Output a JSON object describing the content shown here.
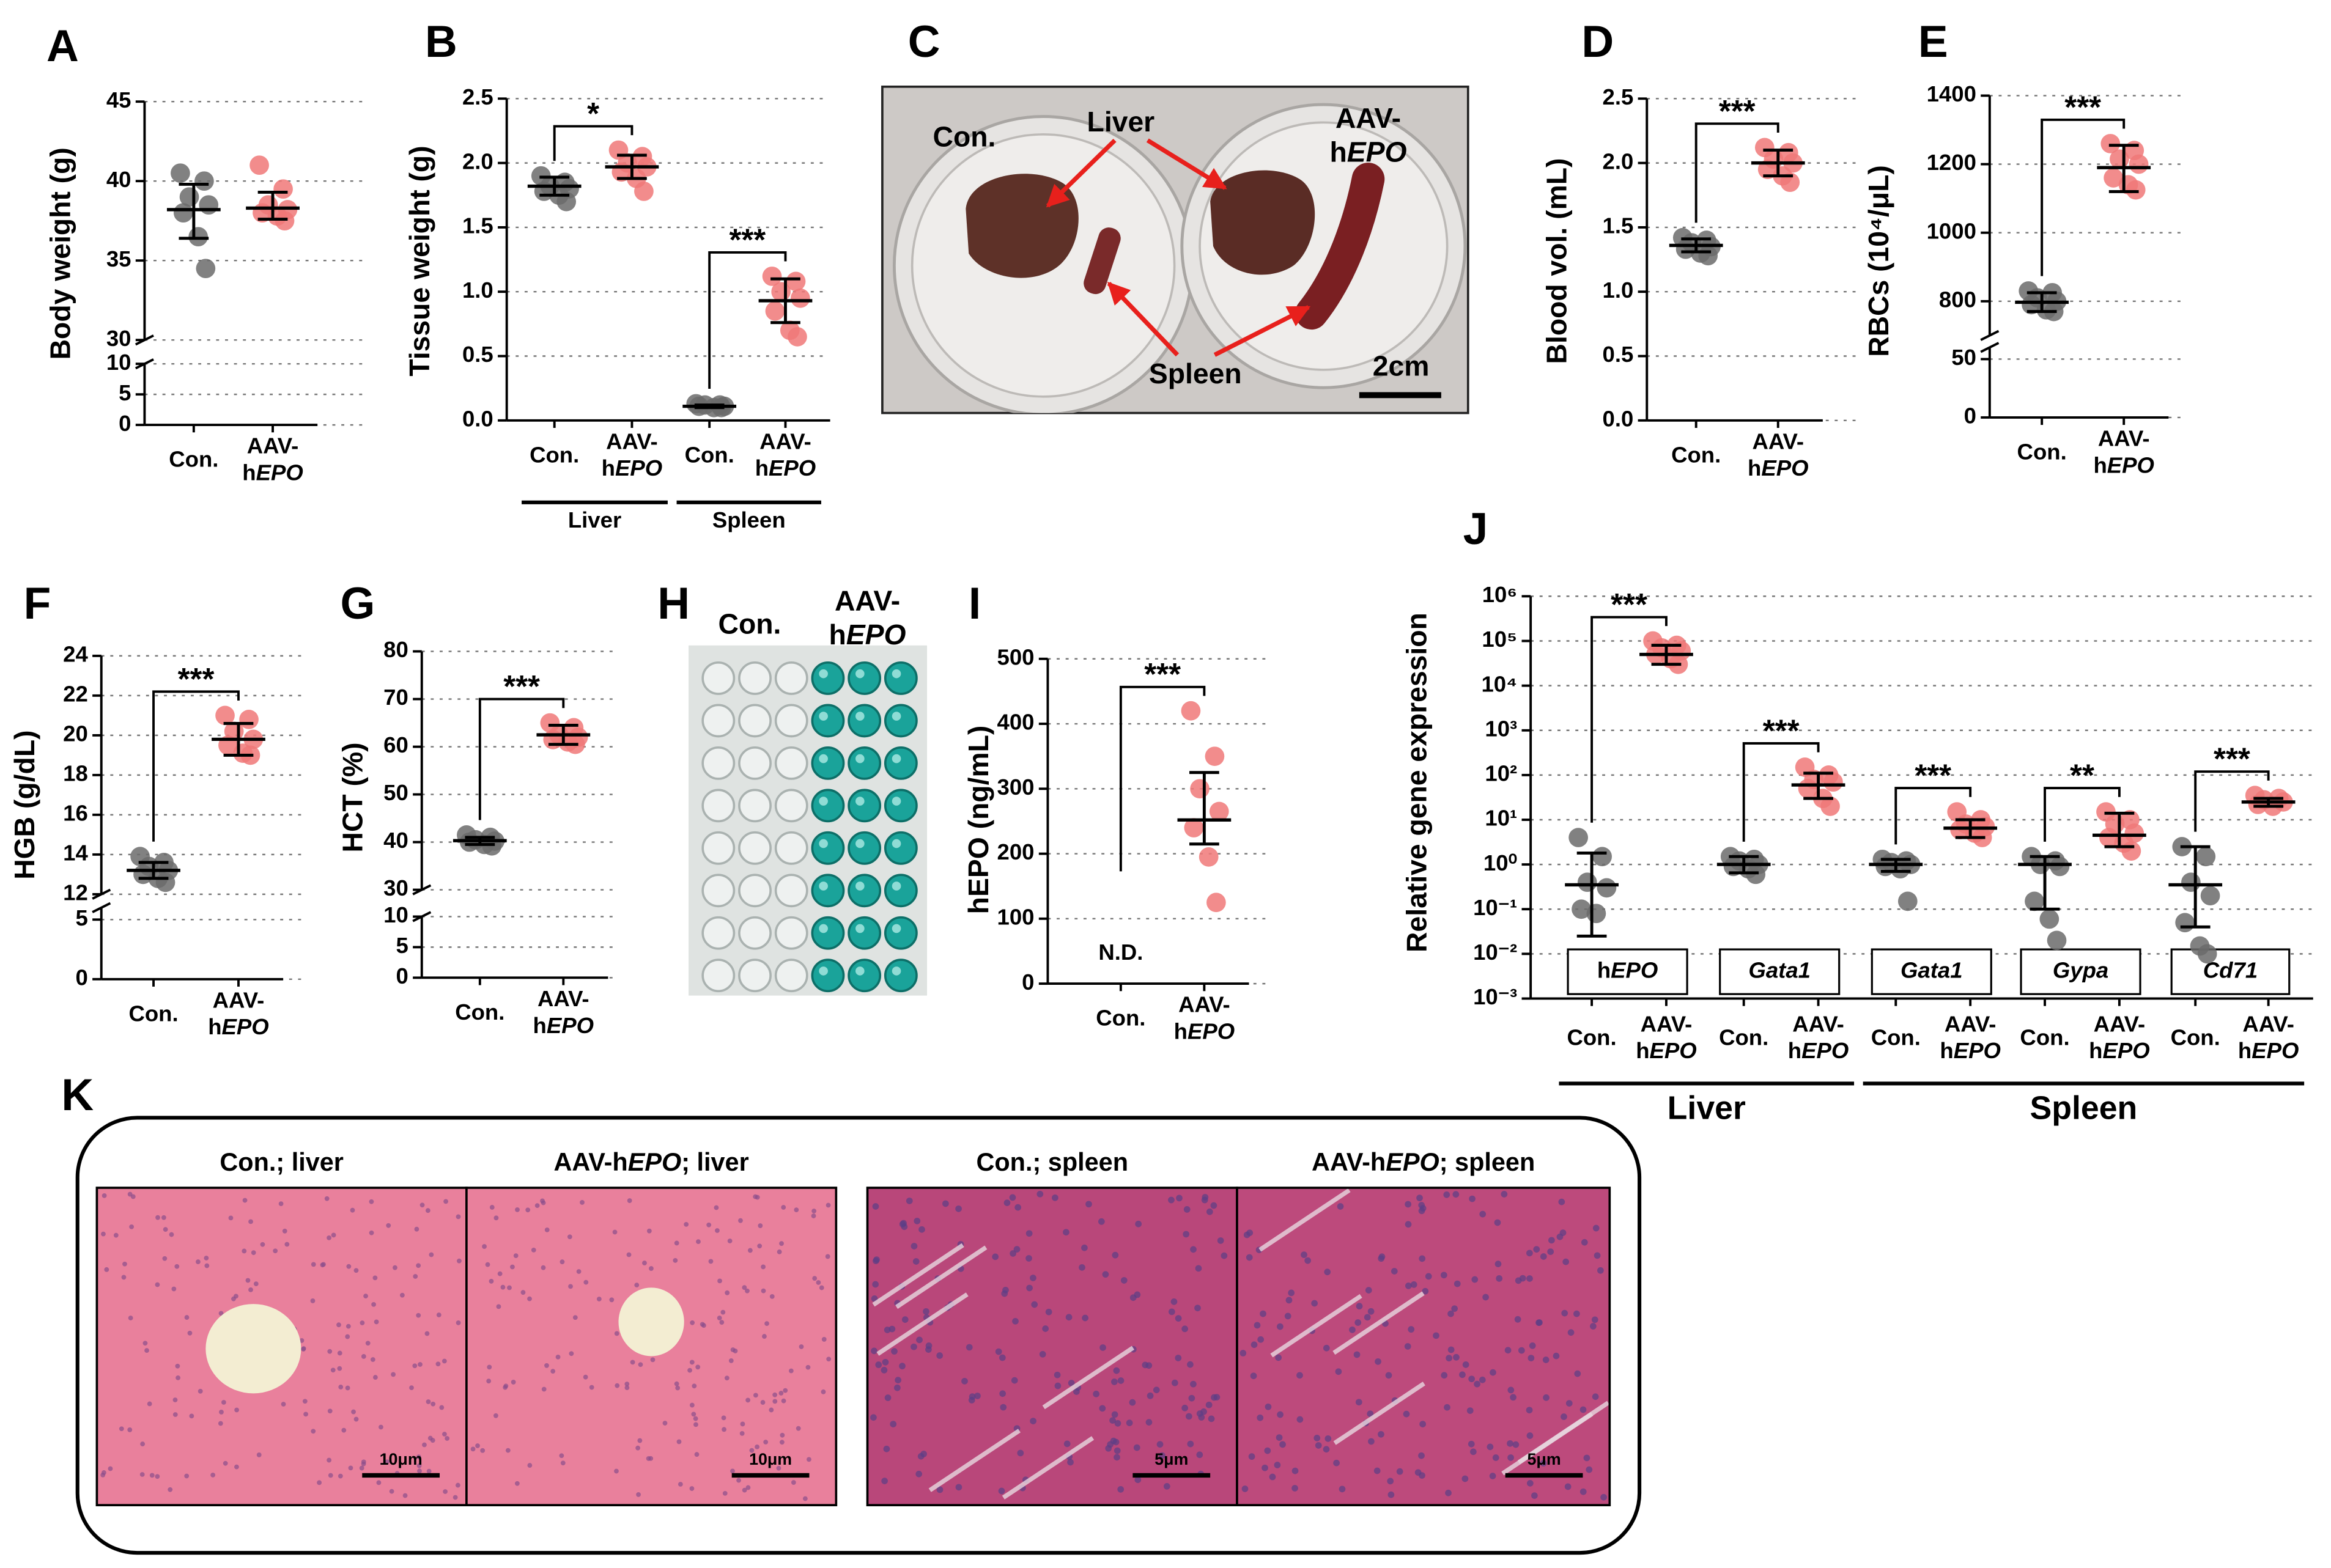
{
  "chart_data": [
    {
      "panel": "A",
      "type": "dot",
      "ylabel": "Body weight (g)",
      "ylim": [
        30,
        45
      ],
      "yticks": [
        30,
        35,
        40,
        45
      ],
      "ylim_low": [
        0,
        10
      ],
      "yticks_low": [
        0,
        5,
        10
      ],
      "grid": true,
      "sections": [
        {
          "pairs": [
            {
              "groups": [
                {
                  "category": "Con.",
                  "color": "#6b6b6b",
                  "values": [
                    40.5,
                    40,
                    39,
                    38.5,
                    38,
                    36.5,
                    34.5
                  ],
                  "center": 38.2,
                  "low": 36.4,
                  "high": 39.8
                },
                {
                  "category": "AAV-hEPO",
                  "color": "#f07878",
                  "values": [
                    41,
                    39.5,
                    38.5,
                    38.2,
                    38,
                    37.8,
                    37.5
                  ],
                  "center": 38.3,
                  "low": 37.6,
                  "high": 39.3
                }
              ]
            }
          ]
        }
      ]
    },
    {
      "panel": "B",
      "type": "dot",
      "ylabel": "Tissue weight (g)",
      "ylim": [
        0,
        2.5
      ],
      "yticks": [
        {
          "value": 0,
          "label": "0.0"
        },
        {
          "value": 0.5,
          "label": "0.5"
        },
        {
          "value": 1,
          "label": "1.0"
        },
        {
          "value": 1.5,
          "label": "1.5"
        },
        {
          "value": 2,
          "label": "2.0"
        },
        {
          "value": 2.5,
          "label": "2.5"
        }
      ],
      "grid": true,
      "sections": [
        {
          "label": "Liver",
          "pairs": [
            {
              "significance": "*",
              "groups": [
                {
                  "category": "Con.",
                  "color": "#6b6b6b",
                  "values": [
                    1.9,
                    1.85,
                    1.82,
                    1.8,
                    1.78,
                    1.75,
                    1.7
                  ],
                  "center": 1.82,
                  "low": 1.75,
                  "high": 1.89
                },
                {
                  "category": "AAV-hEPO",
                  "color": "#f07878",
                  "values": [
                    2.1,
                    2.05,
                    2,
                    1.97,
                    1.93,
                    1.88,
                    1.78
                  ],
                  "center": 1.97,
                  "low": 1.88,
                  "high": 2.06
                }
              ]
            }
          ]
        },
        {
          "label": "Spleen",
          "pairs": [
            {
              "significance": "***",
              "groups": [
                {
                  "category": "Con.",
                  "color": "#6b6b6b",
                  "values": [
                    0.13,
                    0.12,
                    0.12,
                    0.11,
                    0.11,
                    0.1,
                    0.1
                  ],
                  "center": 0.11,
                  "low": 0.1,
                  "high": 0.12
                },
                {
                  "category": "AAV-hEPO",
                  "color": "#f07878",
                  "values": [
                    1.12,
                    1.08,
                    1,
                    0.95,
                    0.85,
                    0.7,
                    0.65
                  ],
                  "center": 0.93,
                  "low": 0.76,
                  "high": 1.1
                }
              ]
            }
          ]
        }
      ]
    },
    {
      "panel": "D",
      "type": "dot",
      "ylabel": "Blood vol. (mL)",
      "ylim": [
        0,
        2.5
      ],
      "yticks": [
        {
          "value": 0,
          "label": "0.0"
        },
        {
          "value": 0.5,
          "label": "0.5"
        },
        {
          "value": 1,
          "label": "1.0"
        },
        {
          "value": 1.5,
          "label": "1.5"
        },
        {
          "value": 2,
          "label": "2.0"
        },
        {
          "value": 2.5,
          "label": "2.5"
        }
      ],
      "grid": true,
      "sections": [
        {
          "pairs": [
            {
              "significance": "***",
              "groups": [
                {
                  "category": "Con.",
                  "color": "#6b6b6b",
                  "values": [
                    1.42,
                    1.4,
                    1.38,
                    1.35,
                    1.33,
                    1.3,
                    1.28
                  ],
                  "center": 1.36,
                  "low": 1.31,
                  "high": 1.41
                },
                {
                  "category": "AAV-hEPO",
                  "color": "#f07878",
                  "values": [
                    2.12,
                    2.08,
                    2.03,
                    2,
                    1.95,
                    1.9,
                    1.85
                  ],
                  "center": 2,
                  "low": 1.9,
                  "high": 2.1
                }
              ]
            }
          ]
        }
      ]
    },
    {
      "panel": "E",
      "type": "dot",
      "ylabel": "RBCs (10⁴/μL)",
      "ylim": [
        700,
        1400
      ],
      "yticks": [
        800,
        1000,
        1200,
        1400
      ],
      "ylim_low": [
        0,
        60
      ],
      "yticks_low": [
        0,
        50
      ],
      "grid": true,
      "sections": [
        {
          "pairs": [
            {
              "significance": "***",
              "groups": [
                {
                  "category": "Con.",
                  "color": "#6b6b6b",
                  "values": [
                    830,
                    825,
                    810,
                    800,
                    790,
                    775,
                    770
                  ],
                  "center": 797,
                  "low": 770,
                  "high": 825
                },
                {
                  "category": "AAV-hEPO",
                  "color": "#f07878",
                  "values": [
                    1260,
                    1240,
                    1215,
                    1200,
                    1160,
                    1140,
                    1125
                  ],
                  "center": 1190,
                  "low": 1120,
                  "high": 1255
                }
              ]
            }
          ]
        }
      ]
    },
    {
      "panel": "F",
      "type": "dot",
      "ylabel": "HGB (g/dL)",
      "ylim": [
        12,
        24
      ],
      "yticks": [
        12,
        14,
        16,
        18,
        20,
        22,
        24
      ],
      "ylim_low": [
        0,
        6
      ],
      "yticks_low": [
        0,
        5
      ],
      "grid": true,
      "sections": [
        {
          "pairs": [
            {
              "significance": "***",
              "groups": [
                {
                  "category": "Con.",
                  "color": "#6b6b6b",
                  "values": [
                    13.9,
                    13.6,
                    13.4,
                    13.2,
                    13,
                    12.8,
                    12.6
                  ],
                  "center": 13.2,
                  "low": 12.8,
                  "high": 13.6
                },
                {
                  "category": "AAV-hEPO",
                  "color": "#f07878",
                  "values": [
                    21,
                    20.8,
                    20.2,
                    19.8,
                    19.5,
                    19.1,
                    19
                  ],
                  "center": 19.8,
                  "low": 19,
                  "high": 20.6
                }
              ]
            }
          ]
        }
      ]
    },
    {
      "panel": "G",
      "type": "dot",
      "ylabel": "HCT  (%)",
      "ylim": [
        30,
        80
      ],
      "yticks": [
        30,
        40,
        50,
        60,
        70,
        80
      ],
      "ylim_low": [
        0,
        10
      ],
      "yticks_low": [
        0,
        5,
        10
      ],
      "grid": true,
      "sections": [
        {
          "pairs": [
            {
              "significance": "***",
              "groups": [
                {
                  "category": "Con.",
                  "color": "#6b6b6b",
                  "values": [
                    41.5,
                    41,
                    40.5,
                    40.2,
                    40,
                    39.5,
                    39.2
                  ],
                  "center": 40.3,
                  "low": 39.5,
                  "high": 41
                },
                {
                  "category": "AAV-hEPO",
                  "color": "#f07878",
                  "values": [
                    65,
                    64,
                    62.5,
                    62,
                    61.5,
                    61,
                    60.5
                  ],
                  "center": 62.5,
                  "low": 60.5,
                  "high": 64.5
                }
              ]
            }
          ]
        }
      ]
    },
    {
      "panel": "I",
      "type": "dot",
      "ylabel": "hEPO  (ng/mL)",
      "ylim": [
        0,
        500
      ],
      "yticks": [
        0,
        100,
        200,
        300,
        400,
        500
      ],
      "grid": true,
      "sections": [
        {
          "pairs": [
            {
              "significance": "***",
              "groups": [
                {
                  "category": "Con.",
                  "color": "#6b6b6b",
                  "values": [],
                  "note": "N.D."
                },
                {
                  "category": "AAV-hEPO",
                  "color": "#f07878",
                  "values": [
                    420,
                    350,
                    300,
                    265,
                    240,
                    195,
                    125
                  ],
                  "center": 252,
                  "low": 215,
                  "high": 325
                }
              ]
            }
          ]
        }
      ]
    },
    {
      "panel": "J",
      "type": "dot",
      "ylabel": "Relative gene expression",
      "log": true,
      "ylim": [
        0.001,
        1000000
      ],
      "yticks": [
        {
          "value": 0.001,
          "label": "10⁻³"
        },
        {
          "value": 0.01,
          "label": "10⁻²"
        },
        {
          "value": 0.1,
          "label": "10⁻¹"
        },
        {
          "value": 1,
          "label": "10⁰"
        },
        {
          "value": 10,
          "label": "10¹"
        },
        {
          "value": 100,
          "label": "10²"
        },
        {
          "value": 1000,
          "label": "10³"
        },
        {
          "value": 10000,
          "label": "10⁴"
        },
        {
          "value": 100000,
          "label": "10⁵"
        },
        {
          "value": 1000000,
          "label": "10⁶"
        }
      ],
      "grid": true,
      "sections": [
        {
          "label": "Liver",
          "pairs": [
            {
              "gene": "hEPO",
              "significance": "***",
              "groups": [
                {
                  "category": "Con.",
                  "color": "#6b6b6b",
                  "values": [
                    4,
                    1.5,
                    0.4,
                    0.3,
                    0.1,
                    0.08
                  ],
                  "center": 0.35,
                  "low": 0.025,
                  "high": 1.8
                },
                {
                  "category": "AAV-hEPO",
                  "color": "#f07878",
                  "values": [
                    100000,
                    80000,
                    70000,
                    60000,
                    50000,
                    40000,
                    30000
                  ],
                  "center": 50000,
                  "low": 30000,
                  "high": 80000
                }
              ]
            },
            {
              "gene": "Gata1",
              "significance": "***",
              "groups": [
                {
                  "category": "Con.",
                  "color": "#6b6b6b",
                  "values": [
                    1.5,
                    1.3,
                    1.2,
                    1,
                    0.9,
                    0.8,
                    0.6
                  ],
                  "center": 1,
                  "low": 0.65,
                  "high": 1.5
                },
                {
                  "category": "AAV-hEPO",
                  "color": "#f07878",
                  "values": [
                    150,
                    100,
                    80,
                    70,
                    50,
                    30,
                    20
                  ],
                  "center": 60,
                  "low": 30,
                  "high": 110
                }
              ]
            }
          ]
        },
        {
          "label": "Spleen",
          "pairs": [
            {
              "gene": "Gata1",
              "significance": "***",
              "groups": [
                {
                  "category": "Con.",
                  "color": "#6b6b6b",
                  "values": [
                    1.3,
                    1.2,
                    1.1,
                    1,
                    0.9,
                    0.8,
                    0.15
                  ],
                  "center": 1,
                  "low": 0.7,
                  "high": 1.3
                },
                {
                  "category": "AAV-hEPO",
                  "color": "#f07878",
                  "values": [
                    15,
                    10,
                    8,
                    7,
                    6,
                    5,
                    4
                  ],
                  "center": 6.5,
                  "low": 4,
                  "high": 10
                }
              ]
            },
            {
              "gene": "Gypa",
              "significance": "**",
              "groups": [
                {
                  "category": "Con.",
                  "color": "#6b6b6b",
                  "values": [
                    1.5,
                    1.2,
                    1,
                    0.9,
                    0.15,
                    0.06,
                    0.02
                  ],
                  "center": 1,
                  "low": 0.1,
                  "high": 1.5
                },
                {
                  "category": "AAV-hEPO",
                  "color": "#f07878",
                  "values": [
                    15,
                    10,
                    8,
                    5,
                    4,
                    3,
                    2
                  ],
                  "center": 4.5,
                  "low": 2.5,
                  "high": 14
                }
              ]
            },
            {
              "gene": "Cd71",
              "significance": "***",
              "groups": [
                {
                  "category": "Con.",
                  "color": "#6b6b6b",
                  "values": [
                    2.5,
                    1.5,
                    0.4,
                    0.2,
                    0.05,
                    0.015,
                    0.01
                  ],
                  "center": 0.35,
                  "low": 0.04,
                  "high": 2.5
                },
                {
                  "category": "AAV-hEPO",
                  "color": "#f07878",
                  "values": [
                    35,
                    30,
                    28,
                    25,
                    22,
                    20
                  ],
                  "center": 25,
                  "low": 20,
                  "high": 30
                }
              ]
            }
          ]
        }
      ]
    }
  ],
  "panel_c": {
    "panel": "C",
    "labels": {
      "con": "Con.",
      "liver": "Liver",
      "aav": "AAV-hEPO",
      "spleen": "Spleen",
      "scale": "2cm"
    }
  },
  "panel_h": {
    "panel": "H",
    "columns": [
      "Con.",
      "AAV-hEPO"
    ]
  },
  "panel_k": {
    "panel": "K",
    "images": [
      {
        "title": "Con.; liver",
        "scale": "10μm"
      },
      {
        "title": "AAV-hEPO; liver",
        "scale": "10μm"
      },
      {
        "title": "Con.; spleen",
        "scale": "5μm"
      },
      {
        "title": "AAV-hEPO; spleen",
        "scale": "5μm"
      }
    ]
  }
}
